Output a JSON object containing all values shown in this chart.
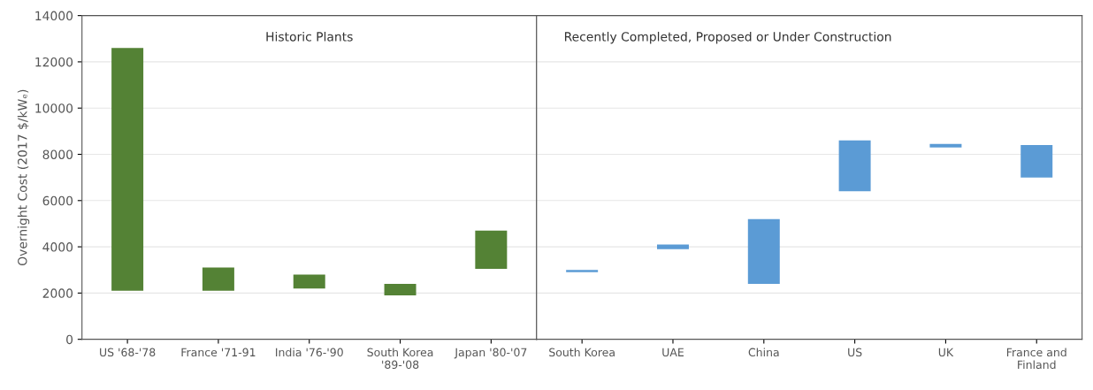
{
  "chart_data": [
    {
      "type": "bar",
      "title": "Historic Plants",
      "ylabel": "Overnight Cost (2017 $/kWₑ)",
      "categories": [
        "US '68-'78",
        "France '71-91",
        "India '76-'90",
        "South Korea\n'89-'08",
        "Japan '80-'07"
      ],
      "values": [
        10500,
        1000,
        600,
        500,
        1650
      ],
      "base": [
        2100,
        2100,
        2200,
        1900,
        3050
      ],
      "colors": [
        "#548235",
        "#548235",
        "#548235",
        "#548235",
        "#548235"
      ],
      "ylim": [
        0,
        14000
      ],
      "yticks": [
        0,
        2000,
        4000,
        6000,
        8000,
        10000,
        12000,
        14000
      ],
      "grid": "y"
    },
    {
      "type": "bar",
      "title": "Recently Completed, Proposed or Under Construction",
      "categories": [
        "South Korea",
        "UAE",
        "China",
        "US",
        "UK",
        "France and\nFinland"
      ],
      "values": [
        100,
        200,
        2800,
        2200,
        150,
        1400
      ],
      "base": [
        2900,
        3900,
        2400,
        6400,
        8300,
        7000
      ],
      "colors": [
        "#5b9bd5",
        "#5b9bd5",
        "#5b9bd5",
        "#5b9bd5",
        "#5b9bd5",
        "#5b9bd5"
      ],
      "ylim": [
        0,
        14000
      ],
      "yticks": [
        0,
        2000,
        4000,
        6000,
        8000,
        10000,
        12000,
        14000
      ],
      "grid": "y",
      "tick_labels": "x"
    }
  ]
}
